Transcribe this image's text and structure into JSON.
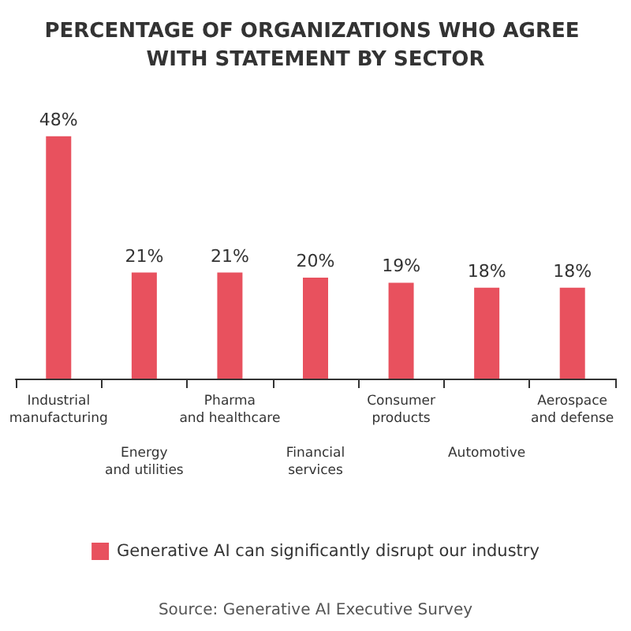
{
  "chart_data": {
    "type": "bar",
    "title": "PERCENTAGE OF ORGANIZATIONS WHO AGREE WITH STATEMENT BY SECTOR",
    "categories": [
      "Industrial manufacturing",
      "Energy and utilities",
      "Pharma and healthcare",
      "Financial services",
      "Consumer products",
      "Automotive",
      "Aerospace and defense"
    ],
    "series": [
      {
        "name": "Generative AI can significantly disrupt our industry",
        "color": "#e8515e",
        "values": [
          48,
          21,
          21,
          20,
          19,
          18,
          18
        ],
        "value_labels": [
          "48%",
          "21%",
          "21%",
          "20%",
          "19%",
          "18%",
          "18%"
        ]
      }
    ],
    "legend": "bottom",
    "annotations": [
      "Source: Generative AI Executive Survey"
    ]
  }
}
